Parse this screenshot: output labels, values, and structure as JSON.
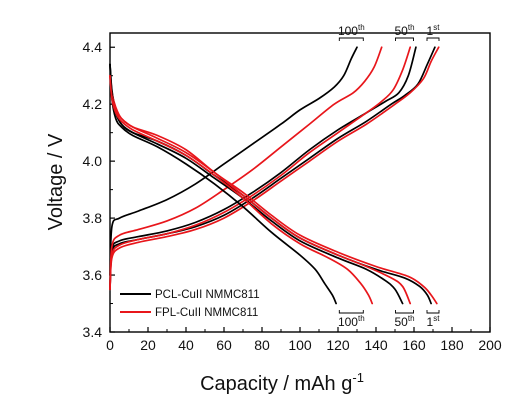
{
  "chart_data": {
    "type": "line",
    "xlabel": "Capacity / mAh g",
    "xlabel_sup": "-1",
    "ylabel": "Voltage / V",
    "xlim": [
      0,
      200
    ],
    "ylim": [
      3.4,
      4.45
    ],
    "x_ticks": [
      0,
      20,
      40,
      60,
      80,
      100,
      120,
      140,
      160,
      180,
      200
    ],
    "x_tick_labels": [
      "0",
      "20",
      "40",
      "60",
      "80",
      "100",
      "120",
      "140",
      "160",
      "180",
      "200"
    ],
    "y_ticks": [
      3.4,
      3.6,
      3.8,
      4.0,
      4.2,
      4.4
    ],
    "y_tick_labels": [
      "3.4",
      "3.6",
      "3.8",
      "4.0",
      "4.2",
      "4.4"
    ],
    "grid": false,
    "legend_position": "bottom-left",
    "legend": [
      {
        "label": "PCL-CuII NMMC811",
        "color": "#000000"
      },
      {
        "label": "FPL-CuII NMMC811",
        "color": "#e8161b"
      }
    ],
    "annotations": {
      "top": [
        {
          "base": "100",
          "sup": "th",
          "x": 127
        },
        {
          "base": "50",
          "sup": "th",
          "x": 155
        },
        {
          "base": "1",
          "sup": "st",
          "x": 170
        }
      ],
      "bottom": [
        {
          "base": "100",
          "sup": "th",
          "x": 127
        },
        {
          "base": "50",
          "sup": "th",
          "x": 155
        },
        {
          "base": "1",
          "sup": "st",
          "x": 170
        }
      ]
    },
    "series": [
      {
        "color": "#000000",
        "kind": "charge",
        "cycle": "1st",
        "points": [
          [
            0,
            3.55
          ],
          [
            1,
            3.68
          ],
          [
            5,
            3.71
          ],
          [
            15,
            3.725
          ],
          [
            30,
            3.745
          ],
          [
            45,
            3.77
          ],
          [
            60,
            3.81
          ],
          [
            75,
            3.87
          ],
          [
            90,
            3.94
          ],
          [
            105,
            4.01
          ],
          [
            120,
            4.08
          ],
          [
            135,
            4.14
          ],
          [
            148,
            4.2
          ],
          [
            155,
            4.23
          ],
          [
            162,
            4.27
          ],
          [
            167,
            4.34
          ],
          [
            171,
            4.4
          ]
        ]
      },
      {
        "color": "#e8161b",
        "kind": "charge",
        "cycle": "1st",
        "points": [
          [
            0,
            3.55
          ],
          [
            1,
            3.66
          ],
          [
            5,
            3.695
          ],
          [
            15,
            3.715
          ],
          [
            30,
            3.735
          ],
          [
            45,
            3.76
          ],
          [
            60,
            3.8
          ],
          [
            75,
            3.86
          ],
          [
            90,
            3.93
          ],
          [
            105,
            4.0
          ],
          [
            120,
            4.07
          ],
          [
            135,
            4.13
          ],
          [
            150,
            4.2
          ],
          [
            158,
            4.24
          ],
          [
            165,
            4.29
          ],
          [
            169,
            4.35
          ],
          [
            173,
            4.4
          ]
        ]
      },
      {
        "color": "#000000",
        "kind": "charge",
        "cycle": "50th",
        "points": [
          [
            0,
            3.55
          ],
          [
            1,
            3.69
          ],
          [
            5,
            3.72
          ],
          [
            15,
            3.735
          ],
          [
            30,
            3.755
          ],
          [
            45,
            3.785
          ],
          [
            60,
            3.83
          ],
          [
            75,
            3.89
          ],
          [
            90,
            3.96
          ],
          [
            105,
            4.04
          ],
          [
            120,
            4.11
          ],
          [
            135,
            4.17
          ],
          [
            145,
            4.21
          ],
          [
            152,
            4.24
          ],
          [
            157,
            4.3
          ],
          [
            161,
            4.4
          ]
        ]
      },
      {
        "color": "#e8161b",
        "kind": "charge",
        "cycle": "50th",
        "points": [
          [
            0,
            3.55
          ],
          [
            1,
            3.67
          ],
          [
            5,
            3.705
          ],
          [
            15,
            3.725
          ],
          [
            30,
            3.745
          ],
          [
            45,
            3.775
          ],
          [
            60,
            3.82
          ],
          [
            75,
            3.88
          ],
          [
            90,
            3.95
          ],
          [
            105,
            4.03
          ],
          [
            120,
            4.1
          ],
          [
            135,
            4.17
          ],
          [
            143,
            4.21
          ],
          [
            149,
            4.25
          ],
          [
            154,
            4.32
          ],
          [
            158,
            4.4
          ]
        ]
      },
      {
        "color": "#000000",
        "kind": "charge",
        "cycle": "100th",
        "points": [
          [
            0,
            3.6
          ],
          [
            1,
            3.77
          ],
          [
            5,
            3.8
          ],
          [
            15,
            3.825
          ],
          [
            30,
            3.865
          ],
          [
            45,
            3.92
          ],
          [
            60,
            3.99
          ],
          [
            75,
            4.06
          ],
          [
            90,
            4.13
          ],
          [
            100,
            4.18
          ],
          [
            110,
            4.22
          ],
          [
            118,
            4.26
          ],
          [
            123,
            4.3
          ],
          [
            127,
            4.36
          ],
          [
            130,
            4.4
          ]
        ]
      },
      {
        "color": "#e8161b",
        "kind": "charge",
        "cycle": "100th",
        "points": [
          [
            0,
            3.55
          ],
          [
            1,
            3.7
          ],
          [
            5,
            3.74
          ],
          [
            15,
            3.76
          ],
          [
            30,
            3.79
          ],
          [
            45,
            3.835
          ],
          [
            60,
            3.9
          ],
          [
            75,
            3.97
          ],
          [
            90,
            4.05
          ],
          [
            105,
            4.13
          ],
          [
            118,
            4.2
          ],
          [
            128,
            4.24
          ],
          [
            134,
            4.28
          ],
          [
            139,
            4.33
          ],
          [
            143,
            4.4
          ]
        ]
      },
      {
        "color": "#000000",
        "kind": "discharge",
        "cycle": "1st",
        "points": [
          [
            0,
            4.34
          ],
          [
            1,
            4.25
          ],
          [
            3,
            4.18
          ],
          [
            6,
            4.13
          ],
          [
            12,
            4.1
          ],
          [
            25,
            4.07
          ],
          [
            40,
            4.02
          ],
          [
            55,
            3.95
          ],
          [
            70,
            3.88
          ],
          [
            85,
            3.8
          ],
          [
            100,
            3.73
          ],
          [
            120,
            3.67
          ],
          [
            140,
            3.62
          ],
          [
            155,
            3.59
          ],
          [
            163,
            3.56
          ],
          [
            167,
            3.53
          ],
          [
            169,
            3.5
          ]
        ]
      },
      {
        "color": "#e8161b",
        "kind": "discharge",
        "cycle": "1st",
        "points": [
          [
            0,
            4.3
          ],
          [
            1,
            4.24
          ],
          [
            3,
            4.19
          ],
          [
            6,
            4.15
          ],
          [
            12,
            4.12
          ],
          [
            25,
            4.09
          ],
          [
            40,
            4.04
          ],
          [
            55,
            3.96
          ],
          [
            70,
            3.89
          ],
          [
            85,
            3.81
          ],
          [
            100,
            3.74
          ],
          [
            120,
            3.68
          ],
          [
            140,
            3.63
          ],
          [
            157,
            3.595
          ],
          [
            165,
            3.56
          ],
          [
            169,
            3.53
          ],
          [
            172,
            3.5
          ]
        ]
      },
      {
        "color": "#000000",
        "kind": "discharge",
        "cycle": "50th",
        "points": [
          [
            0,
            4.34
          ],
          [
            1,
            4.24
          ],
          [
            3,
            4.17
          ],
          [
            6,
            4.13
          ],
          [
            12,
            4.1
          ],
          [
            25,
            4.06
          ],
          [
            40,
            4.01
          ],
          [
            55,
            3.94
          ],
          [
            70,
            3.87
          ],
          [
            85,
            3.79
          ],
          [
            100,
            3.72
          ],
          [
            120,
            3.66
          ],
          [
            135,
            3.62
          ],
          [
            145,
            3.58
          ],
          [
            150,
            3.55
          ],
          [
            154,
            3.5
          ]
        ]
      },
      {
        "color": "#e8161b",
        "kind": "discharge",
        "cycle": "50th",
        "points": [
          [
            0,
            4.3
          ],
          [
            1,
            4.23
          ],
          [
            3,
            4.18
          ],
          [
            6,
            4.15
          ],
          [
            12,
            4.12
          ],
          [
            25,
            4.08
          ],
          [
            40,
            4.03
          ],
          [
            55,
            3.96
          ],
          [
            70,
            3.88
          ],
          [
            85,
            3.8
          ],
          [
            100,
            3.73
          ],
          [
            120,
            3.67
          ],
          [
            135,
            3.63
          ],
          [
            148,
            3.59
          ],
          [
            154,
            3.56
          ],
          [
            158,
            3.5
          ]
        ]
      },
      {
        "color": "#000000",
        "kind": "discharge",
        "cycle": "100th",
        "points": [
          [
            0,
            4.34
          ],
          [
            1,
            4.22
          ],
          [
            3,
            4.15
          ],
          [
            6,
            4.12
          ],
          [
            12,
            4.09
          ],
          [
            25,
            4.05
          ],
          [
            40,
            3.99
          ],
          [
            55,
            3.92
          ],
          [
            70,
            3.84
          ],
          [
            85,
            3.75
          ],
          [
            100,
            3.67
          ],
          [
            108,
            3.62
          ],
          [
            113,
            3.57
          ],
          [
            117,
            3.53
          ],
          [
            119,
            3.5
          ]
        ]
      },
      {
        "color": "#e8161b",
        "kind": "discharge",
        "cycle": "100th",
        "points": [
          [
            0,
            4.3
          ],
          [
            1,
            4.22
          ],
          [
            3,
            4.17
          ],
          [
            6,
            4.14
          ],
          [
            12,
            4.11
          ],
          [
            25,
            4.07
          ],
          [
            40,
            4.02
          ],
          [
            55,
            3.95
          ],
          [
            70,
            3.87
          ],
          [
            85,
            3.78
          ],
          [
            100,
            3.71
          ],
          [
            115,
            3.66
          ],
          [
            125,
            3.62
          ],
          [
            132,
            3.57
          ],
          [
            136,
            3.53
          ],
          [
            138,
            3.5
          ]
        ]
      }
    ]
  }
}
